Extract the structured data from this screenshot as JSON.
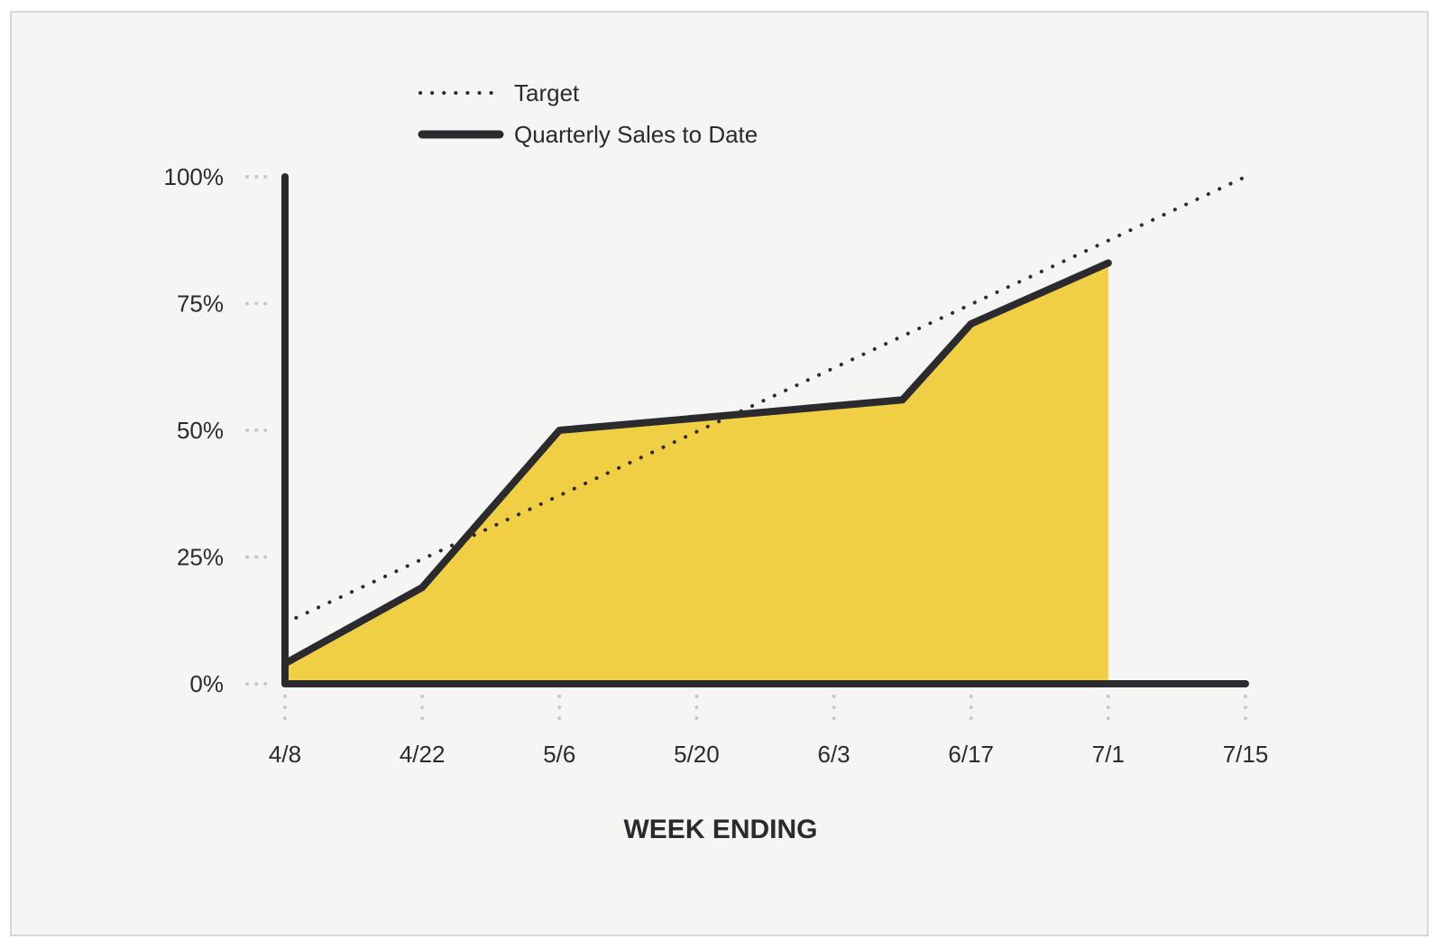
{
  "colors": {
    "background": "#f5f6f4",
    "frame_border": "#d6d6d6",
    "line": "#2a2a2f",
    "area_fill": "#f0cf45",
    "tick_dots": "#c8c8c8"
  },
  "legend": {
    "target_label": "Target",
    "sales_label": "Quarterly Sales to Date",
    "placement": "top-left"
  },
  "chart_data": {
    "type": "area",
    "x_tick_labels": [
      "4/8",
      "4/22",
      "5/6",
      "5/20",
      "6/3",
      "6/17",
      "7/1",
      "7/15"
    ],
    "y_tick_labels": [
      "0%",
      "25%",
      "50%",
      "75%",
      "100%"
    ],
    "y_ticks": [
      0,
      25,
      50,
      75,
      100
    ],
    "xlabel": "WEEK ENDING",
    "ylabel": "",
    "ylim": [
      0,
      100
    ],
    "grid": false,
    "series": [
      {
        "name": "Quarterly Sales to Date",
        "style": "solid-area",
        "points": [
          {
            "x": "4/8",
            "y": 4
          },
          {
            "x": "4/22",
            "y": 19
          },
          {
            "x": "5/6",
            "y": 50
          },
          {
            "x": "6/10",
            "y": 56
          },
          {
            "x": "6/17",
            "y": 71
          },
          {
            "x": "7/1",
            "y": 83
          }
        ]
      },
      {
        "name": "Target",
        "style": "dotted",
        "points": [
          {
            "x": "4/8",
            "y": 12
          },
          {
            "x": "7/15",
            "y": 100
          }
        ]
      }
    ]
  }
}
